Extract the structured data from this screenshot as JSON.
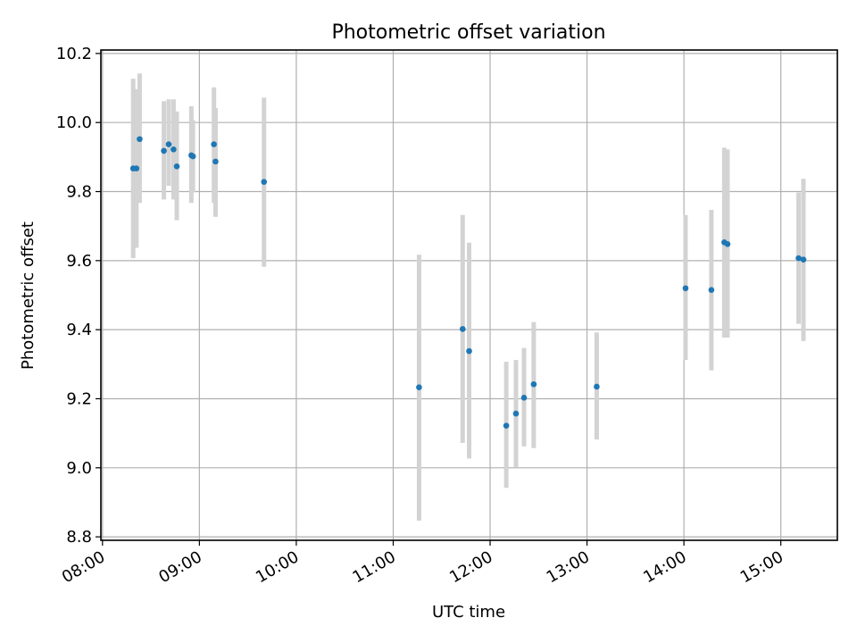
{
  "chart_data": {
    "type": "scatter",
    "title": "Photometric offset variation",
    "xlabel": "UTC time",
    "ylabel": "Photometric offset",
    "x_tick_labels": [
      "08:00",
      "09:00",
      "10:00",
      "11:00",
      "12:00",
      "13:00",
      "14:00",
      "15:00"
    ],
    "y_tick_labels": [
      "8.8",
      "9.0",
      "9.2",
      "9.4",
      "9.6",
      "9.8",
      "10.0",
      "10.2"
    ],
    "y_ticks": [
      8.8,
      9.0,
      9.2,
      9.4,
      9.6,
      9.8,
      10.0,
      10.2
    ],
    "xlim": [
      "07:59",
      "15:35"
    ],
    "ylim": [
      8.79,
      10.21
    ],
    "grid": true,
    "point_color": "#1f77b4",
    "errorbar_color": "#d3d3d3",
    "points": [
      {
        "x": "08:19",
        "y": 9.867,
        "lo": 9.607,
        "hi": 10.127
      },
      {
        "x": "08:21",
        "y": 9.867,
        "lo": 9.637,
        "hi": 10.097
      },
      {
        "x": "08:23",
        "y": 9.952,
        "lo": 9.767,
        "hi": 10.142
      },
      {
        "x": "08:38",
        "y": 9.918,
        "lo": 9.777,
        "hi": 10.062
      },
      {
        "x": "08:41",
        "y": 9.937,
        "lo": 9.817,
        "hi": 10.067
      },
      {
        "x": "08:44",
        "y": 9.922,
        "lo": 9.777,
        "hi": 10.067
      },
      {
        "x": "08:46",
        "y": 9.873,
        "lo": 9.717,
        "hi": 10.032
      },
      {
        "x": "08:55",
        "y": 9.905,
        "lo": 9.767,
        "hi": 10.047
      },
      {
        "x": "08:56",
        "y": 9.902,
        "lo": 9.797,
        "hi": 10.007
      },
      {
        "x": "09:09",
        "y": 9.937,
        "lo": 9.767,
        "hi": 10.102
      },
      {
        "x": "09:10",
        "y": 9.887,
        "lo": 9.727,
        "hi": 10.042
      },
      {
        "x": "09:40",
        "y": 9.828,
        "lo": 9.582,
        "hi": 10.072
      },
      {
        "x": "11:16",
        "y": 9.233,
        "lo": 8.847,
        "hi": 9.617
      },
      {
        "x": "11:43",
        "y": 9.402,
        "lo": 9.072,
        "hi": 9.732
      },
      {
        "x": "11:47",
        "y": 9.338,
        "lo": 9.027,
        "hi": 9.652
      },
      {
        "x": "12:10",
        "y": 9.122,
        "lo": 8.942,
        "hi": 9.307
      },
      {
        "x": "12:16",
        "y": 9.157,
        "lo": 9.002,
        "hi": 9.312
      },
      {
        "x": "12:21",
        "y": 9.203,
        "lo": 9.062,
        "hi": 9.347
      },
      {
        "x": "12:27",
        "y": 9.242,
        "lo": 9.057,
        "hi": 9.422
      },
      {
        "x": "13:06",
        "y": 9.235,
        "lo": 9.082,
        "hi": 9.392
      },
      {
        "x": "14:01",
        "y": 9.52,
        "lo": 9.312,
        "hi": 9.732
      },
      {
        "x": "14:17",
        "y": 9.515,
        "lo": 9.282,
        "hi": 9.747
      },
      {
        "x": "14:25",
        "y": 9.653,
        "lo": 9.377,
        "hi": 9.927
      },
      {
        "x": "14:27",
        "y": 9.648,
        "lo": 9.377,
        "hi": 9.922
      },
      {
        "x": "15:11",
        "y": 9.607,
        "lo": 9.417,
        "hi": 9.797
      },
      {
        "x": "15:14",
        "y": 9.603,
        "lo": 9.367,
        "hi": 9.837
      }
    ]
  }
}
